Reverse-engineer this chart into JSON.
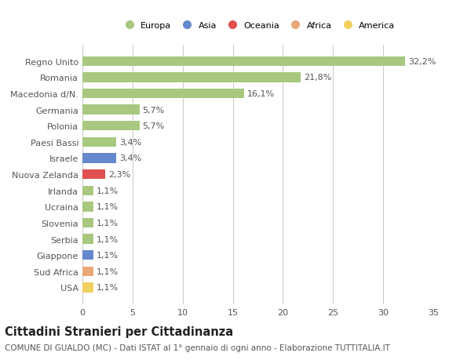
{
  "categories": [
    "USA",
    "Sud Africa",
    "Giappone",
    "Serbia",
    "Slovenia",
    "Ucraina",
    "Irlanda",
    "Nuova Zelanda",
    "Israele",
    "Paesi Bassi",
    "Polonia",
    "Germania",
    "Macedonia d/N.",
    "Romania",
    "Regno Unito"
  ],
  "values": [
    1.1,
    1.1,
    1.1,
    1.1,
    1.1,
    1.1,
    1.1,
    2.3,
    3.4,
    3.4,
    5.7,
    5.7,
    16.1,
    21.8,
    32.2
  ],
  "labels": [
    "1,1%",
    "1,1%",
    "1,1%",
    "1,1%",
    "1,1%",
    "1,1%",
    "1,1%",
    "2,3%",
    "3,4%",
    "3,4%",
    "5,7%",
    "5,7%",
    "16,1%",
    "21,8%",
    "32,2%"
  ],
  "colors": [
    "#f0d060",
    "#e8a878",
    "#6688cc",
    "#a8c880",
    "#a8c880",
    "#a8c880",
    "#a8c880",
    "#e05050",
    "#6688cc",
    "#a8c880",
    "#a8c880",
    "#a8c880",
    "#a8c880",
    "#a8c880",
    "#a8c880"
  ],
  "legend_labels": [
    "Europa",
    "Asia",
    "Oceania",
    "Africa",
    "America"
  ],
  "legend_colors": [
    "#a8c880",
    "#6688cc",
    "#e05050",
    "#e8a878",
    "#f0d060"
  ],
  "title": "Cittadini Stranieri per Cittadinanza",
  "subtitle": "COMUNE DI GUALDO (MC) - Dati ISTAT al 1° gennaio di ogni anno - Elaborazione TUTTITALIA.IT",
  "xlim": [
    0,
    35
  ],
  "xticks": [
    0,
    5,
    10,
    15,
    20,
    25,
    30,
    35
  ],
  "bg_color": "#ffffff",
  "bar_height": 0.6,
  "grid_color": "#cccccc",
  "label_fontsize": 8.0,
  "title_fontsize": 10.5,
  "subtitle_fontsize": 7.5
}
